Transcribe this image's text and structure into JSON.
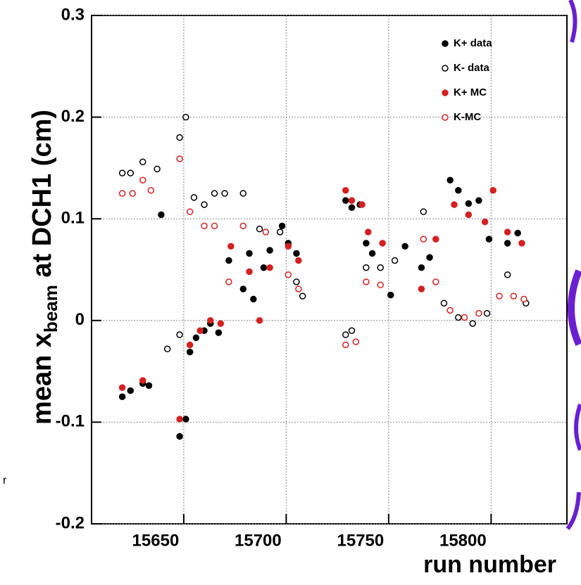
{
  "chart_data": {
    "type": "scatter",
    "ylabel": {
      "text": "mean x",
      "sub": "beam",
      "rest": " at DCH1 (cm)"
    },
    "xlabel": "run number",
    "xlim": [
      15605,
      15837
    ],
    "ylim": [
      -0.2,
      0.3
    ],
    "xticks": [
      15650,
      15700,
      15750,
      15800
    ],
    "yticks": [
      -0.2,
      -0.1,
      0,
      0.1,
      0.2,
      0.3
    ],
    "grid": true,
    "legend": "upper right",
    "series": [
      {
        "name": "K+ data",
        "color": "#000000",
        "marker": "filled",
        "x": [
          15620,
          15624,
          15630,
          15633,
          15639,
          15648,
          15651,
          15653,
          15656,
          15660,
          15663,
          15667,
          15672,
          15679,
          15682,
          15684,
          15689,
          15692,
          15698,
          15701,
          15705,
          15729,
          15732,
          15736,
          15739,
          15742,
          15751,
          15758,
          15766,
          15770,
          15780,
          15784,
          15789,
          15794,
          15799,
          15808,
          15813
        ],
        "values": [
          -0.075,
          -0.069,
          -0.062,
          -0.064,
          0.104,
          -0.114,
          -0.097,
          -0.031,
          -0.017,
          -0.01,
          -0.003,
          -0.012,
          0.059,
          0.031,
          0.066,
          0.021,
          0.052,
          0.069,
          0.093,
          0.076,
          0.066,
          0.118,
          0.111,
          0.114,
          0.076,
          0.066,
          0.025,
          0.073,
          0.052,
          0.062,
          0.138,
          0.128,
          0.115,
          0.118,
          0.08,
          0.076,
          0.086
        ]
      },
      {
        "name": "K- data",
        "color": "#000000",
        "marker": "open",
        "x": [
          15620,
          15624,
          15630,
          15637,
          15642,
          15648,
          15648,
          15651,
          15655,
          15660,
          15665,
          15670,
          15679,
          15687,
          15697,
          15705,
          15708,
          15729,
          15732,
          15739,
          15746,
          15753,
          15767,
          15777,
          15784,
          15791,
          15798,
          15808,
          15817
        ],
        "values": [
          0.145,
          0.145,
          0.156,
          0.149,
          -0.028,
          0.18,
          -0.014,
          0.2,
          0.121,
          0.114,
          0.125,
          0.125,
          0.125,
          0.09,
          0.087,
          0.038,
          0.024,
          -0.014,
          -0.01,
          0.052,
          0.052,
          0.059,
          0.107,
          0.017,
          0.003,
          -0.003,
          0.007,
          0.045,
          0.017
        ]
      },
      {
        "name": "K+ MC",
        "color": "#d42020",
        "marker": "filled",
        "x": [
          15620,
          15630,
          15648,
          15653,
          15658,
          15663,
          15668,
          15673,
          15682,
          15687,
          15692,
          15701,
          15706,
          15729,
          15732,
          15737,
          15740,
          15747,
          15766,
          15773,
          15782,
          15789,
          15797,
          15801,
          15808,
          15815
        ],
        "values": [
          -0.066,
          -0.059,
          -0.097,
          -0.024,
          -0.01,
          0,
          -0.003,
          0.073,
          0.048,
          0,
          0.052,
          0.073,
          0.059,
          0.128,
          0.118,
          0.114,
          0.087,
          0.076,
          0.031,
          0.08,
          0.114,
          0.104,
          0.097,
          0.128,
          0.087,
          0.076
        ]
      },
      {
        "name": "K-MC",
        "color": "#d42020",
        "marker": "open",
        "x": [
          15620,
          15625,
          15630,
          15634,
          15648,
          15653,
          15660,
          15665,
          15672,
          15679,
          15690,
          15701,
          15706,
          15729,
          15734,
          15739,
          15746,
          15767,
          15773,
          15780,
          15787,
          15794,
          15804,
          15811,
          15816
        ],
        "values": [
          0.125,
          0.125,
          0.138,
          0.128,
          0.159,
          0.107,
          0.093,
          0.093,
          0.038,
          0.093,
          0.087,
          0.045,
          0.031,
          -0.024,
          -0.021,
          0.038,
          0.035,
          0.08,
          0.038,
          0.01,
          0.003,
          0.007,
          0.024,
          0.024,
          0.021
        ]
      }
    ]
  },
  "fragment": "r"
}
